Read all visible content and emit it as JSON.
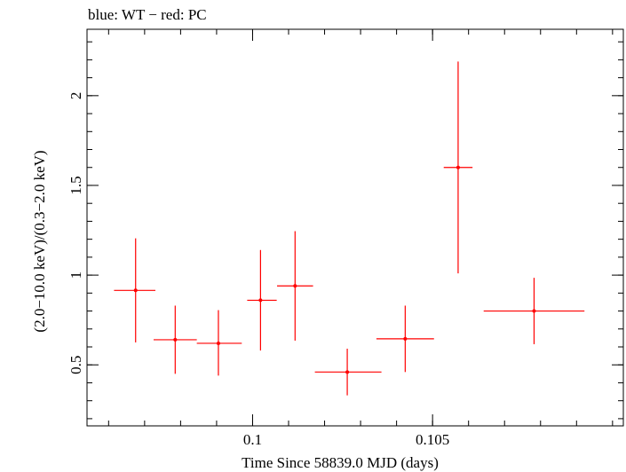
{
  "chart_data": {
    "type": "scatter",
    "title": "blue: WT − red: PC",
    "xlabel": "Time Since 58839.0 MJD (days)",
    "ylabel": "(2.0−10.0 keV)/(0.3−2.0 keV)",
    "xlim": [
      0.0954,
      0.1103
    ],
    "ylim": [
      0.16,
      2.37
    ],
    "x_ticks": [
      {
        "value": 0.1,
        "label": "0.1"
      },
      {
        "value": 0.105,
        "label": "0.105"
      }
    ],
    "y_ticks": [
      {
        "value": 0.5,
        "label": "0.5"
      },
      {
        "value": 1.0,
        "label": "1"
      },
      {
        "value": 1.5,
        "label": "1.5"
      },
      {
        "value": 2.0,
        "label": "2"
      }
    ],
    "x_minor_step": 0.001,
    "y_minor_step": 0.1,
    "series": [
      {
        "name": "PC",
        "color": "#ff0000",
        "points": [
          {
            "x": 0.09675,
            "y": 0.915,
            "xerr_lo": 0.0006,
            "xerr_hi": 0.00055,
            "yerr_lo": 0.29,
            "yerr_hi": 0.29
          },
          {
            "x": 0.09785,
            "y": 0.64,
            "xerr_lo": 0.0006,
            "xerr_hi": 0.0006,
            "yerr_lo": 0.19,
            "yerr_hi": 0.19
          },
          {
            "x": 0.09905,
            "y": 0.62,
            "xerr_lo": 0.0006,
            "xerr_hi": 0.00065,
            "yerr_lo": 0.18,
            "yerr_hi": 0.185
          },
          {
            "x": 0.10022,
            "y": 0.86,
            "xerr_lo": 0.00037,
            "xerr_hi": 0.00045,
            "yerr_lo": 0.28,
            "yerr_hi": 0.28
          },
          {
            "x": 0.10118,
            "y": 0.94,
            "xerr_lo": 0.0005,
            "xerr_hi": 0.0005,
            "yerr_lo": 0.305,
            "yerr_hi": 0.305
          },
          {
            "x": 0.10263,
            "y": 0.46,
            "xerr_lo": 0.0009,
            "xerr_hi": 0.00095,
            "yerr_lo": 0.13,
            "yerr_hi": 0.13
          },
          {
            "x": 0.10424,
            "y": 0.645,
            "xerr_lo": 0.0008,
            "xerr_hi": 0.0008,
            "yerr_lo": 0.185,
            "yerr_hi": 0.185
          },
          {
            "x": 0.10571,
            "y": 1.6,
            "xerr_lo": 0.0004,
            "xerr_hi": 0.0004,
            "yerr_lo": 0.59,
            "yerr_hi": 0.59
          },
          {
            "x": 0.10782,
            "y": 0.8,
            "xerr_lo": 0.0014,
            "xerr_hi": 0.0014,
            "yerr_lo": 0.185,
            "yerr_hi": 0.185
          }
        ]
      }
    ]
  }
}
